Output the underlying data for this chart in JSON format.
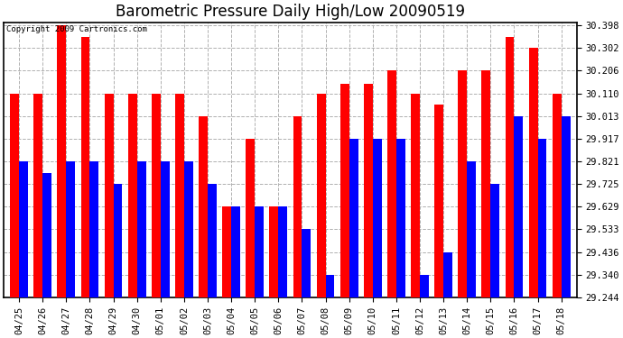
{
  "title": "Barometric Pressure Daily High/Low 20090519",
  "copyright": "Copyright 2009 Cartronics.com",
  "categories": [
    "04/25",
    "04/26",
    "04/27",
    "04/28",
    "04/29",
    "04/30",
    "05/01",
    "05/02",
    "05/03",
    "05/04",
    "05/05",
    "05/06",
    "05/07",
    "05/08",
    "05/09",
    "05/10",
    "05/11",
    "05/12",
    "05/13",
    "05/14",
    "05/15",
    "05/16",
    "05/17",
    "05/18"
  ],
  "highs": [
    30.11,
    30.11,
    30.398,
    30.35,
    30.11,
    30.11,
    30.11,
    30.11,
    30.013,
    29.629,
    29.917,
    29.629,
    30.013,
    30.11,
    30.15,
    30.15,
    30.206,
    30.11,
    30.063,
    30.206,
    30.206,
    30.35,
    30.302,
    30.11
  ],
  "lows": [
    29.821,
    29.773,
    29.821,
    29.821,
    29.725,
    29.821,
    29.821,
    29.821,
    29.725,
    29.629,
    29.629,
    29.629,
    29.533,
    29.34,
    29.917,
    29.917,
    29.917,
    29.34,
    29.436,
    29.821,
    29.725,
    30.013,
    29.917,
    30.013
  ],
  "bar_width": 0.38,
  "ymin": 29.244,
  "ymax": 30.41,
  "yticks": [
    29.244,
    29.34,
    29.436,
    29.533,
    29.629,
    29.725,
    29.821,
    29.917,
    30.013,
    30.11,
    30.206,
    30.302,
    30.398
  ],
  "high_color": "#ff0000",
  "low_color": "#0000ff",
  "bg_color": "#ffffff",
  "grid_color": "#b0b0b0",
  "title_fontsize": 12,
  "tick_fontsize": 7.5
}
